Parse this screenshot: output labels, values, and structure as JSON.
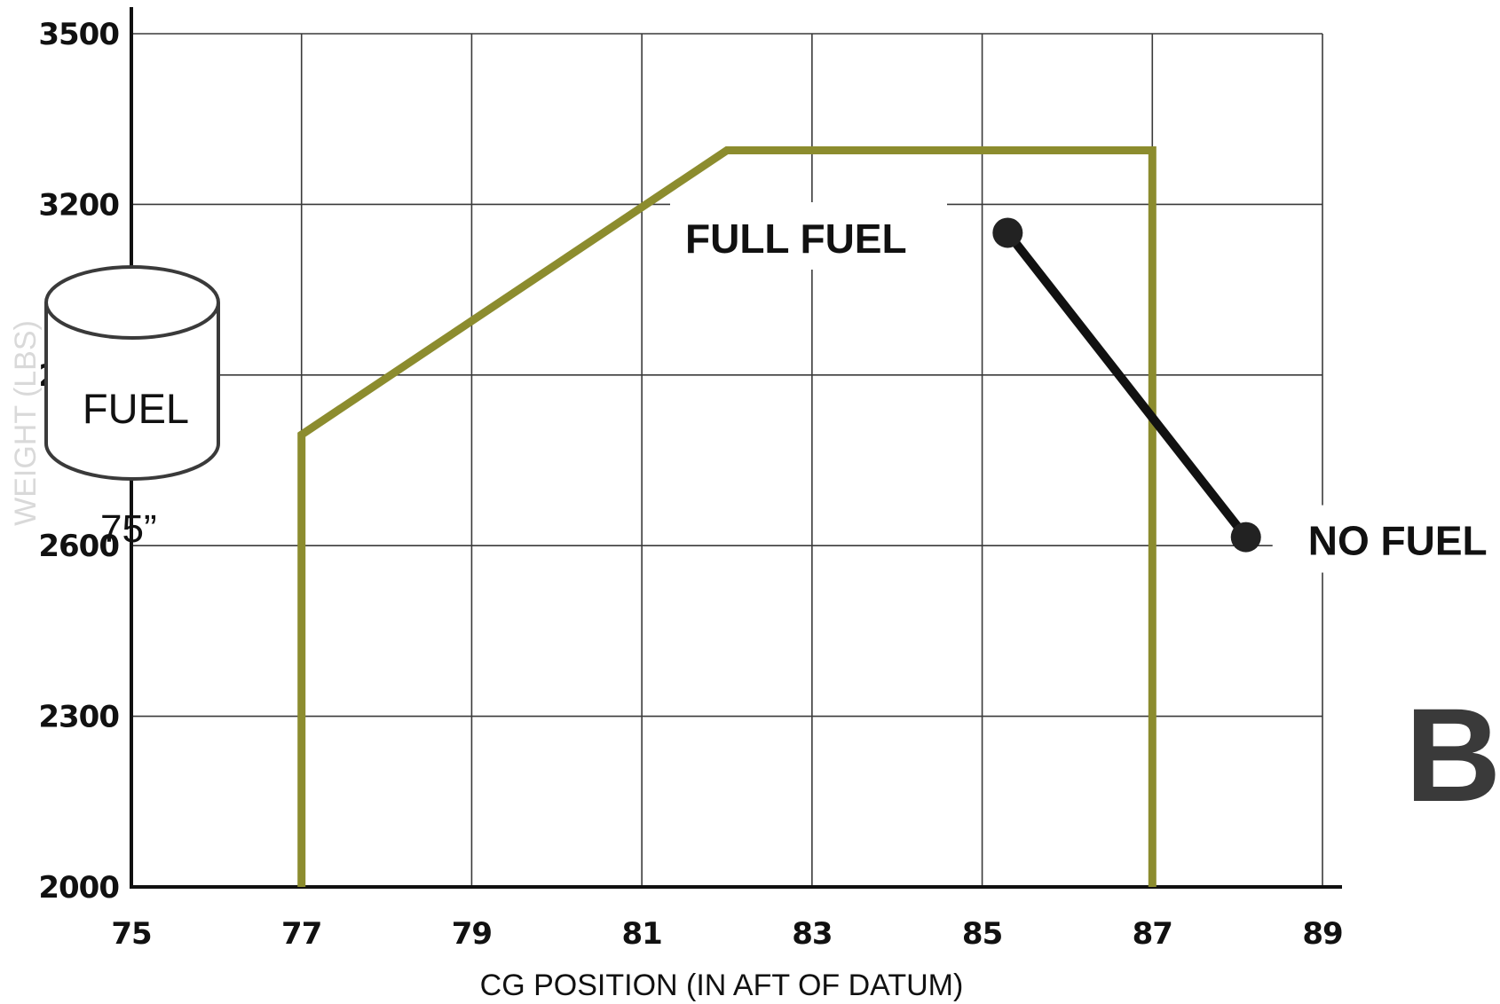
{
  "chart_data": {
    "type": "line",
    "xlabel": "CG POSITION (IN AFT OF DATUM)",
    "ylabel": "WEIGHT (LBS)",
    "xlim": [
      75,
      89
    ],
    "ylim": [
      2000,
      3500
    ],
    "xticks": [
      75,
      77,
      79,
      81,
      83,
      85,
      87,
      89
    ],
    "yticks": [
      2000,
      2300,
      2600,
      2900,
      3200,
      3500
    ],
    "xtick_labels": [
      "75",
      "77",
      "79",
      "81",
      "83",
      "85",
      "87",
      "89"
    ],
    "ytick_labels": [
      "2000",
      "2300",
      "2600",
      "2900",
      "3200",
      "3500"
    ],
    "grid": true,
    "series": [
      {
        "color": "#8c8c2e",
        "x": [
          77,
          77,
          82,
          87,
          87
        ],
        "y": [
          2000,
          2795,
          3295,
          3295,
          2000
        ]
      },
      {
        "color": "#111111",
        "x": [
          85.3,
          88.1
        ],
        "y": [
          3150,
          2615
        ]
      }
    ],
    "annotations": [
      {
        "id": "full_fuel",
        "text": "FULL FUEL"
      },
      {
        "id": "no_fuel",
        "text": "NO FUEL"
      }
    ]
  },
  "fuel_tank": {
    "label": "FUEL",
    "arm_label": "75”"
  },
  "partial_title": "B"
}
